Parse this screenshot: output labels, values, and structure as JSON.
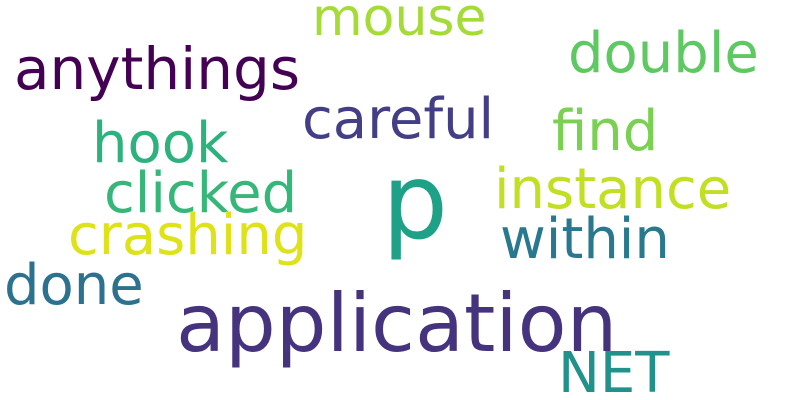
{
  "words": [
    {
      "text": "mouse",
      "color": "#a5db36"
    },
    {
      "text": "double",
      "color": "#5ec962"
    },
    {
      "text": "anythings",
      "color": "#440154"
    },
    {
      "text": "careful",
      "color": "#433e85"
    },
    {
      "text": "find",
      "color": "#7ad151"
    },
    {
      "text": "hook",
      "color": "#2db27d"
    },
    {
      "text": "p",
      "color": "#1fa187"
    },
    {
      "text": "instance",
      "color": "#c2df23"
    },
    {
      "text": "clicked",
      "color": "#35b779"
    },
    {
      "text": "crashing",
      "color": "#dde318"
    },
    {
      "text": "within",
      "color": "#2a788e"
    },
    {
      "text": "done",
      "color": "#2c728e"
    },
    {
      "text": "application",
      "color": "#46337e"
    },
    {
      "text": "NET",
      "color": "#21918c"
    }
  ]
}
